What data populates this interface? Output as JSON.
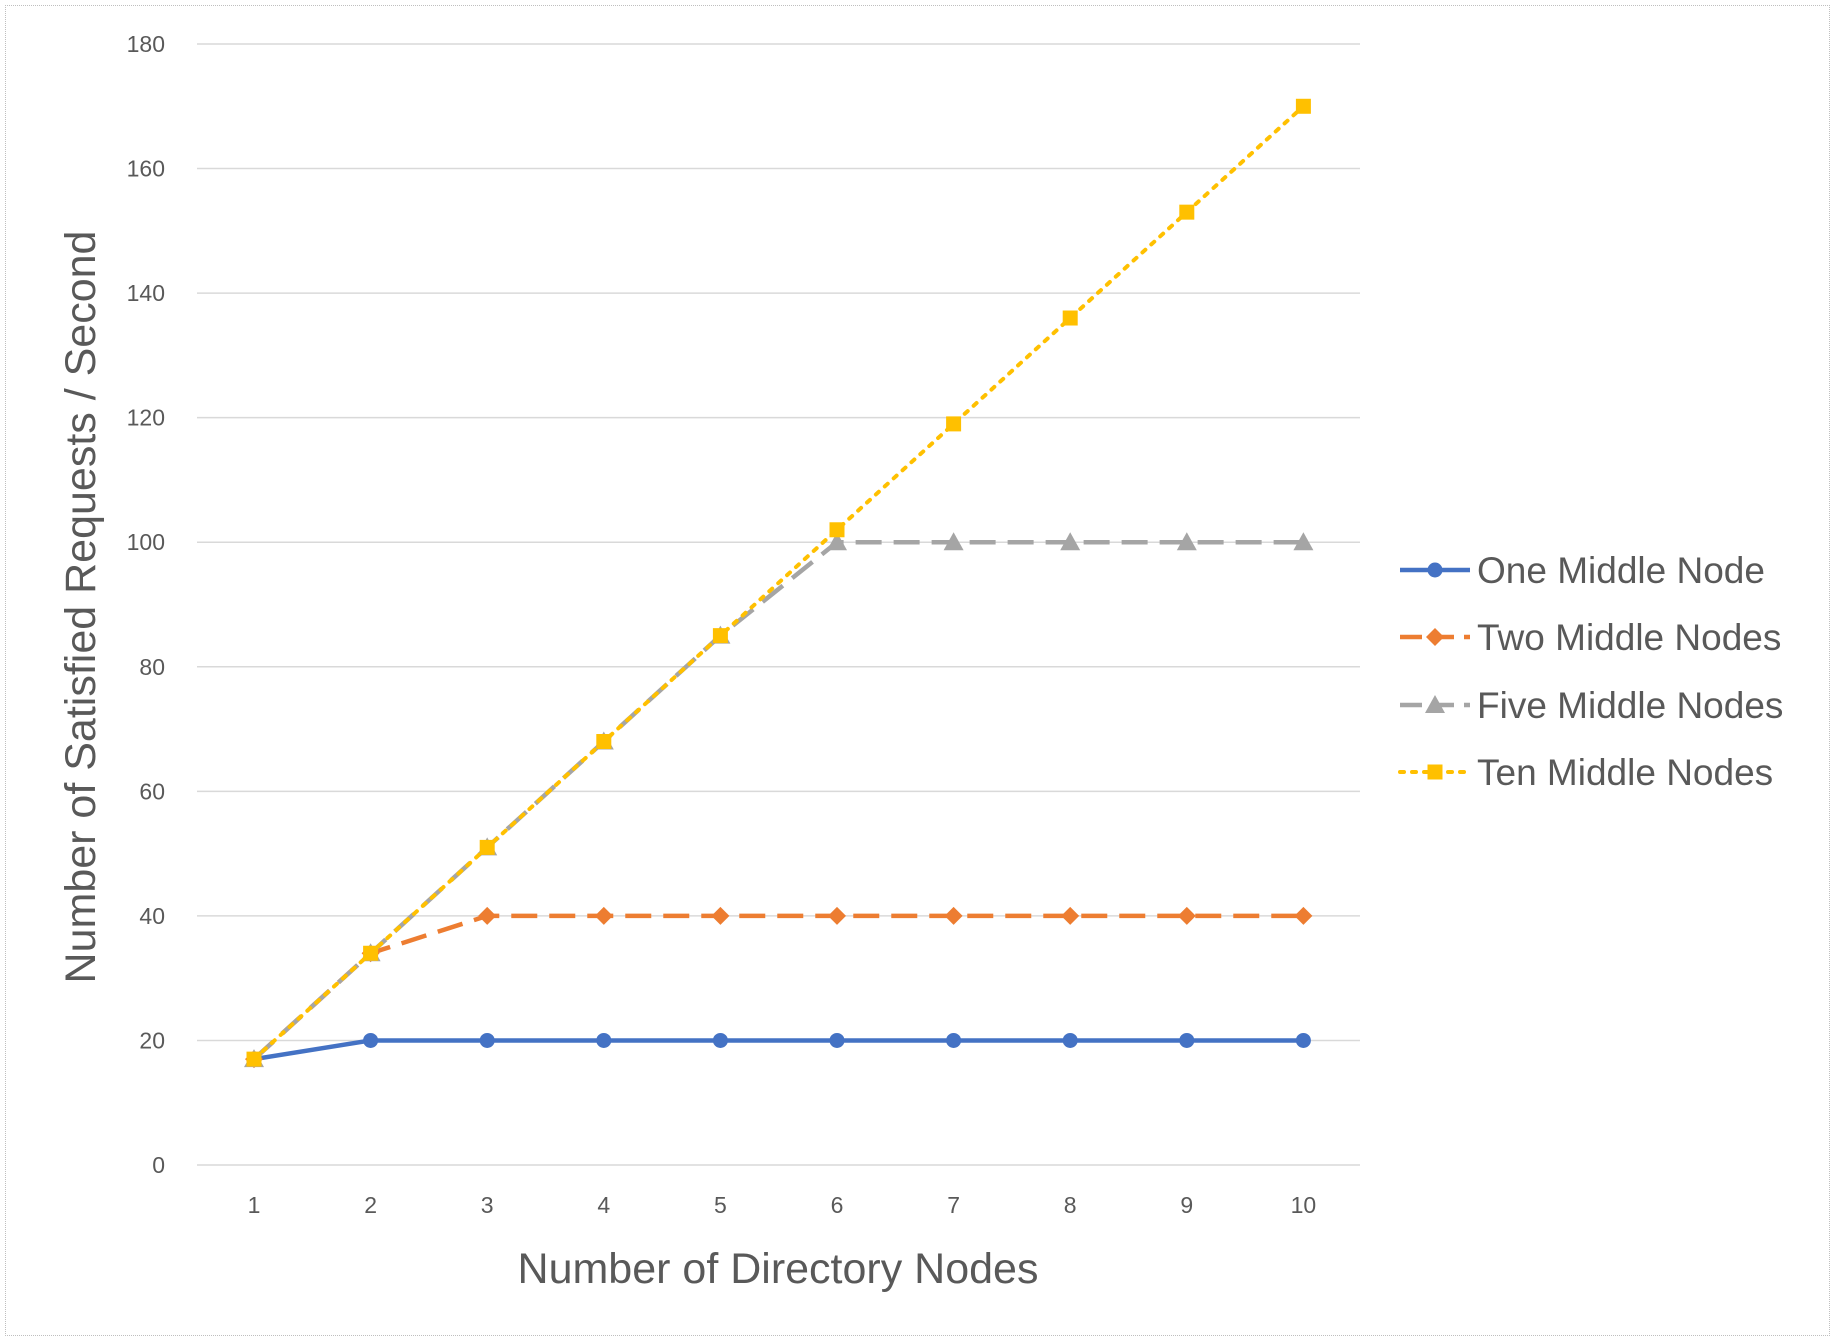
{
  "chart_data": {
    "type": "line",
    "title": "",
    "xlabel": "Number of Directory Nodes",
    "ylabel": "Number of Satisfied Requests / Second",
    "categories": [
      "1",
      "2",
      "3",
      "4",
      "5",
      "6",
      "7",
      "8",
      "9",
      "10"
    ],
    "ylim": [
      0,
      180
    ],
    "yticks": [
      0,
      20,
      40,
      60,
      80,
      100,
      120,
      140,
      160,
      180
    ],
    "grid": "horizontal",
    "legend_position": "right",
    "series": [
      {
        "name": "One Middle Node",
        "values": [
          17,
          20,
          20,
          20,
          20,
          20,
          20,
          20,
          20,
          20
        ],
        "color": "#4472c4",
        "line_style": "solid",
        "marker": "circle"
      },
      {
        "name": "Two Middle Nodes",
        "values": [
          17,
          34,
          40,
          40,
          40,
          40,
          40,
          40,
          40,
          40
        ],
        "color": "#ed7d31",
        "line_style": "dashed",
        "marker": "diamond"
      },
      {
        "name": "Five Middle Nodes",
        "values": [
          17,
          34,
          51,
          68,
          85,
          100,
          100,
          100,
          100,
          100
        ],
        "color": "#a5a5a5",
        "line_style": "dashed",
        "marker": "triangle"
      },
      {
        "name": "Ten Middle Nodes",
        "values": [
          17,
          34,
          51,
          68,
          85,
          102,
          119,
          136,
          153,
          170
        ],
        "color": "#ffc000",
        "line_style": "dotted",
        "marker": "square"
      }
    ]
  }
}
